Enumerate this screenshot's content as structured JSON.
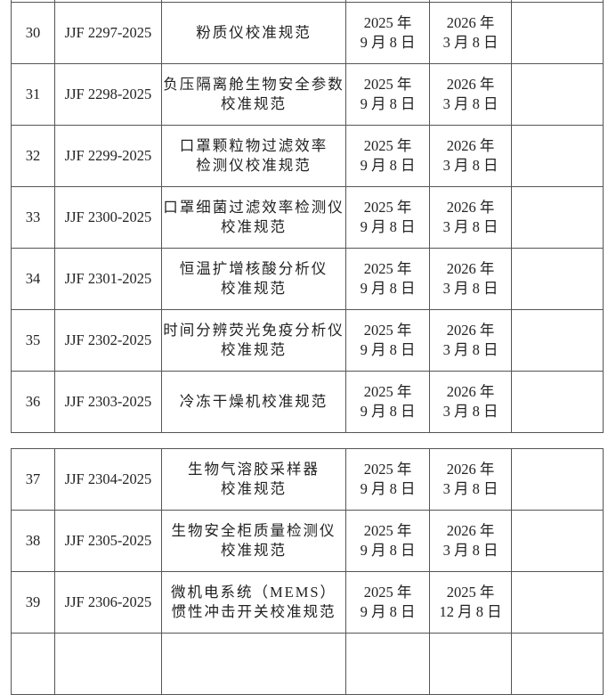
{
  "table1": [
    {
      "no": "",
      "code": "",
      "name": [
        "",
        ""
      ],
      "issue": [
        "",
        ""
      ],
      "effective": [
        "",
        ""
      ],
      "note": ""
    },
    {
      "no": "30",
      "code": "JJF 2297-2025",
      "name": [
        "粉质仪校准规范",
        ""
      ],
      "issue": [
        "2025 年",
        "9 月 8 日"
      ],
      "effective": [
        "2026 年",
        "3 月 8 日"
      ],
      "note": ""
    },
    {
      "no": "31",
      "code": "JJF 2298-2025",
      "name": [
        "负压隔离舱生物安全参数",
        "校准规范"
      ],
      "issue": [
        "2025 年",
        "9 月 8 日"
      ],
      "effective": [
        "2026 年",
        "3 月 8 日"
      ],
      "note": ""
    },
    {
      "no": "32",
      "code": "JJF 2299-2025",
      "name": [
        "口罩颗粒物过滤效率",
        "检测仪校准规范"
      ],
      "issue": [
        "2025 年",
        "9 月 8 日"
      ],
      "effective": [
        "2026 年",
        "3 月 8 日"
      ],
      "note": ""
    },
    {
      "no": "33",
      "code": "JJF 2300-2025",
      "name": [
        "口罩细菌过滤效率检测仪",
        "校准规范"
      ],
      "issue": [
        "2025 年",
        "9 月 8 日"
      ],
      "effective": [
        "2026 年",
        "3 月 8 日"
      ],
      "note": ""
    },
    {
      "no": "34",
      "code": "JJF 2301-2025",
      "name": [
        "恒温扩增核酸分析仪",
        "校准规范"
      ],
      "issue": [
        "2025 年",
        "9 月 8 日"
      ],
      "effective": [
        "2026 年",
        "3 月 8 日"
      ],
      "note": ""
    },
    {
      "no": "35",
      "code": "JJF 2302-2025",
      "name": [
        "时间分辨荧光免疫分析仪",
        "校准规范"
      ],
      "issue": [
        "2025 年",
        "9 月 8 日"
      ],
      "effective": [
        "2026 年",
        "3 月 8 日"
      ],
      "note": ""
    },
    {
      "no": "36",
      "code": "JJF 2303-2025",
      "name": [
        "冷冻干燥机校准规范",
        ""
      ],
      "issue": [
        "2025 年",
        "9 月 8 日"
      ],
      "effective": [
        "2026 年",
        "3 月 8 日"
      ],
      "note": ""
    }
  ],
  "table2": [
    {
      "no": "37",
      "code": "JJF 2304-2025",
      "name": [
        "生物气溶胶采样器",
        "校准规范"
      ],
      "issue": [
        "2025 年",
        "9 月 8 日"
      ],
      "effective": [
        "2026 年",
        "3 月 8 日"
      ],
      "note": ""
    },
    {
      "no": "38",
      "code": "JJF 2305-2025",
      "name": [
        "生物安全柜质量检测仪",
        "校准规范"
      ],
      "issue": [
        "2025 年",
        "9 月 8 日"
      ],
      "effective": [
        "2026 年",
        "3 月 8 日"
      ],
      "note": ""
    },
    {
      "no": "39",
      "code": "JJF 2306-2025",
      "name": [
        "微机电系统（MEMS）",
        "惯性冲击开关校准规范"
      ],
      "issue": [
        "2025 年",
        "9 月 8 日"
      ],
      "effective": [
        "2025 年",
        "12 月 8 日"
      ],
      "note": ""
    },
    {
      "no": "",
      "code": "",
      "name": [
        "",
        ""
      ],
      "issue": [
        "",
        ""
      ],
      "effective": [
        "",
        ""
      ],
      "note": ""
    }
  ]
}
